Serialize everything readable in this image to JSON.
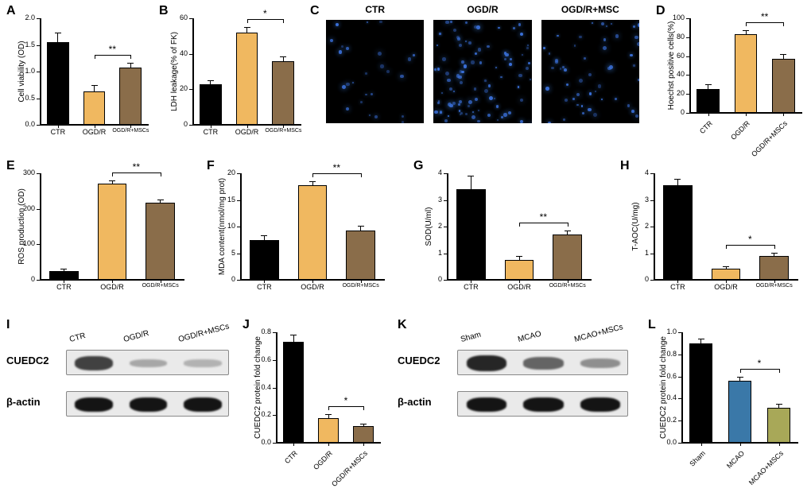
{
  "colors": {
    "ctr": "#000000",
    "ogdr": "#f0b860",
    "ogdr_msc": "#8a6d4a",
    "sham": "#000000",
    "mcao": "#3a78a8",
    "mcao_msc": "#a8a858",
    "axis": "#000000"
  },
  "labels": {
    "ctr": "CTR",
    "ogdr": "OGD/R",
    "ogdr_msc": "OGD/R+MSCs",
    "sham": "Sham",
    "mcao": "MCAO",
    "mcao_msc": "MCAO+MSCs",
    "star1": "*",
    "star2": "**"
  },
  "panelA": {
    "letter": "A",
    "ylabel": "Cell viability (OD)",
    "ylim": [
      0,
      2.0
    ],
    "ytick_step": 0.5,
    "cats": [
      "CTR",
      "OGD/R",
      "OGD/R+MSCs"
    ],
    "vals": [
      1.55,
      0.62,
      1.08
    ],
    "errs": [
      0.18,
      0.12,
      0.08
    ],
    "colors": [
      "#000000",
      "#f0b860",
      "#8a6d4a"
    ],
    "sig": {
      "from": 1,
      "to": 2,
      "label": "**"
    }
  },
  "panelB": {
    "letter": "B",
    "ylabel": "LDH leakage(% of FK)",
    "ylim": [
      0,
      60
    ],
    "ytick_step": 20,
    "cats": [
      "CTR",
      "OGD/R",
      "OGD/R+MSCs"
    ],
    "vals": [
      23,
      52,
      36
    ],
    "errs": [
      2,
      3,
      2.5
    ],
    "colors": [
      "#000000",
      "#f0b860",
      "#8a6d4a"
    ],
    "sig": {
      "from": 1,
      "to": 2,
      "label": "*"
    }
  },
  "panelC": {
    "letter": "C",
    "titles": [
      "CTR",
      "OGD/R",
      "OGD/R+MSC"
    ],
    "densities": [
      25,
      90,
      50
    ]
  },
  "panelD": {
    "letter": "D",
    "ylabel": "Hoechst positive cells(%)",
    "ylim": [
      0,
      100
    ],
    "ytick_step": 20,
    "cats": [
      "CTR",
      "OGD/R",
      "OGD/R+MSCs"
    ],
    "vals": [
      25,
      83,
      57
    ],
    "errs": [
      5,
      4,
      5
    ],
    "colors": [
      "#000000",
      "#f0b860",
      "#8a6d4a"
    ],
    "sig": {
      "from": 1,
      "to": 2,
      "label": "**"
    }
  },
  "panelE": {
    "letter": "E",
    "ylabel": "ROS production (OD)",
    "ylim": [
      0,
      300
    ],
    "ytick_step": 100,
    "cats": [
      "CTR",
      "OGD/R",
      "OGD/R+MSCs"
    ],
    "vals": [
      25,
      270,
      218
    ],
    "errs": [
      6,
      10,
      8
    ],
    "colors": [
      "#000000",
      "#f0b860",
      "#8a6d4a"
    ],
    "sig": {
      "from": 1,
      "to": 2,
      "label": "**"
    }
  },
  "panelF": {
    "letter": "F",
    "ylabel": "MDA content(nmol/mg prot)",
    "ylim": [
      0,
      20
    ],
    "ytick_step": 5,
    "cats": [
      "CTR",
      "OGD/R",
      "OGD/R+MSCs"
    ],
    "vals": [
      7.5,
      17.8,
      9.3
    ],
    "errs": [
      0.8,
      0.7,
      0.8
    ],
    "colors": [
      "#000000",
      "#f0b860",
      "#8a6d4a"
    ],
    "sig": {
      "from": 1,
      "to": 2,
      "label": "**"
    }
  },
  "panelG": {
    "letter": "G",
    "ylabel": "SOD(U/ml)",
    "ylim": [
      0,
      4
    ],
    "ytick_step": 1,
    "cats": [
      "CTR",
      "OGD/R",
      "OGD/R+MSCs"
    ],
    "vals": [
      3.4,
      0.75,
      1.7
    ],
    "errs": [
      0.5,
      0.15,
      0.15
    ],
    "colors": [
      "#000000",
      "#f0b860",
      "#8a6d4a"
    ],
    "sig": {
      "from": 1,
      "to": 2,
      "label": "**"
    }
  },
  "panelH": {
    "letter": "H",
    "ylabel": "T-AOC(U/mg)",
    "ylim": [
      0,
      4
    ],
    "ytick_step": 1,
    "cats": [
      "CTR",
      "OGD/R",
      "OGD/R+MSCs"
    ],
    "vals": [
      3.55,
      0.42,
      0.9
    ],
    "errs": [
      0.25,
      0.08,
      0.12
    ],
    "colors": [
      "#000000",
      "#f0b860",
      "#8a6d4a"
    ],
    "sig": {
      "from": 1,
      "to": 2,
      "label": "*"
    }
  },
  "panelI": {
    "letter": "I",
    "lanes": [
      "CTR",
      "OGD/R",
      "OGD/R+MSCs"
    ],
    "proteins": [
      "CUEDC2",
      "β-actin"
    ],
    "cuedc2_intensity": [
      0.75,
      0.18,
      0.12
    ],
    "actin_intensity": [
      1.0,
      1.0,
      1.0
    ]
  },
  "panelJ": {
    "letter": "J",
    "ylabel": "CUEDC2 protein fold change",
    "ylim": [
      0,
      0.8
    ],
    "ytick_step": 0.2,
    "cats": [
      "CTR",
      "OGD/R",
      "OGD/R+MSCs"
    ],
    "vals": [
      0.73,
      0.18,
      0.12
    ],
    "errs": [
      0.05,
      0.03,
      0.02
    ],
    "colors": [
      "#000000",
      "#f0b860",
      "#8a6d4a"
    ],
    "sig": {
      "from": 1,
      "to": 2,
      "label": "*"
    }
  },
  "panelK": {
    "letter": "K",
    "lanes": [
      "Sham",
      "MCAO",
      "MCAO+MSCs"
    ],
    "proteins": [
      "CUEDC2",
      "β-actin"
    ],
    "cuedc2_intensity": [
      0.9,
      0.55,
      0.32
    ],
    "actin_intensity": [
      1.0,
      1.0,
      1.0
    ]
  },
  "panelL": {
    "letter": "L",
    "ylabel": "CUEDC2 protein fold change",
    "ylim": [
      0,
      1.0
    ],
    "ytick_step": 0.2,
    "cats": [
      "Sham",
      "MCAO",
      "MCAO+MSCs"
    ],
    "vals": [
      0.9,
      0.56,
      0.32
    ],
    "errs": [
      0.04,
      0.04,
      0.03
    ],
    "colors": [
      "#000000",
      "#3a78a8",
      "#a8a858"
    ],
    "sig": {
      "from": 1,
      "to": 2,
      "label": "*"
    }
  }
}
